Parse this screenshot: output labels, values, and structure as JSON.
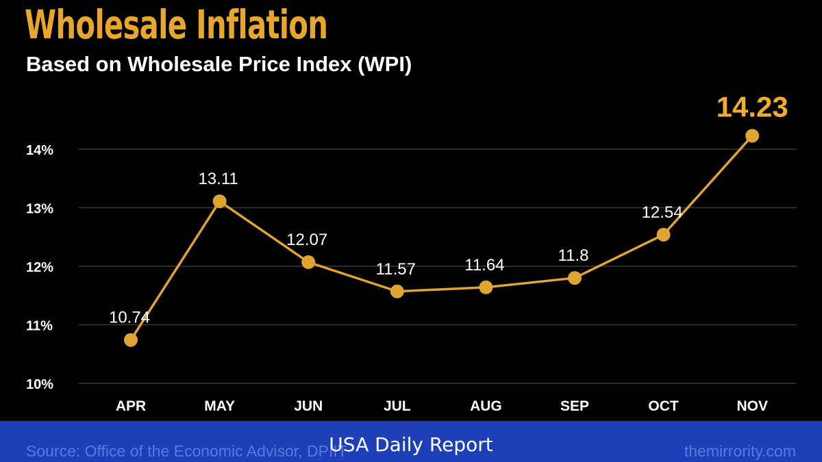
{
  "chart_data": {
    "type": "line",
    "title": "Wholesale Inflation",
    "subtitle": "Based on Wholesale Price Index (WPI)",
    "categories": [
      "APR",
      "MAY",
      "JUN",
      "JUL",
      "AUG",
      "SEP",
      "OCT",
      "NOV"
    ],
    "values": [
      10.74,
      13.11,
      12.07,
      11.57,
      11.64,
      11.8,
      12.54,
      14.23
    ],
    "data_labels": [
      "10.74",
      "13.11",
      "12.07",
      "11.57",
      "11.64",
      "11.8",
      "12.54",
      "14.23"
    ],
    "yticks": [
      10,
      11,
      12,
      13,
      14
    ],
    "ytick_labels": [
      "10%",
      "11%",
      "12%",
      "13%",
      "14%"
    ],
    "ylim": [
      10,
      14
    ],
    "grid": true,
    "xlabel": "",
    "ylabel": "",
    "line_color": "#e0a431",
    "highlight_color": "#f0ad2e"
  },
  "footer": {
    "source": "Source: Office of the Economic Advisor, DPIIT",
    "site": "themirrority.com",
    "banner": "USA Daily Report"
  }
}
